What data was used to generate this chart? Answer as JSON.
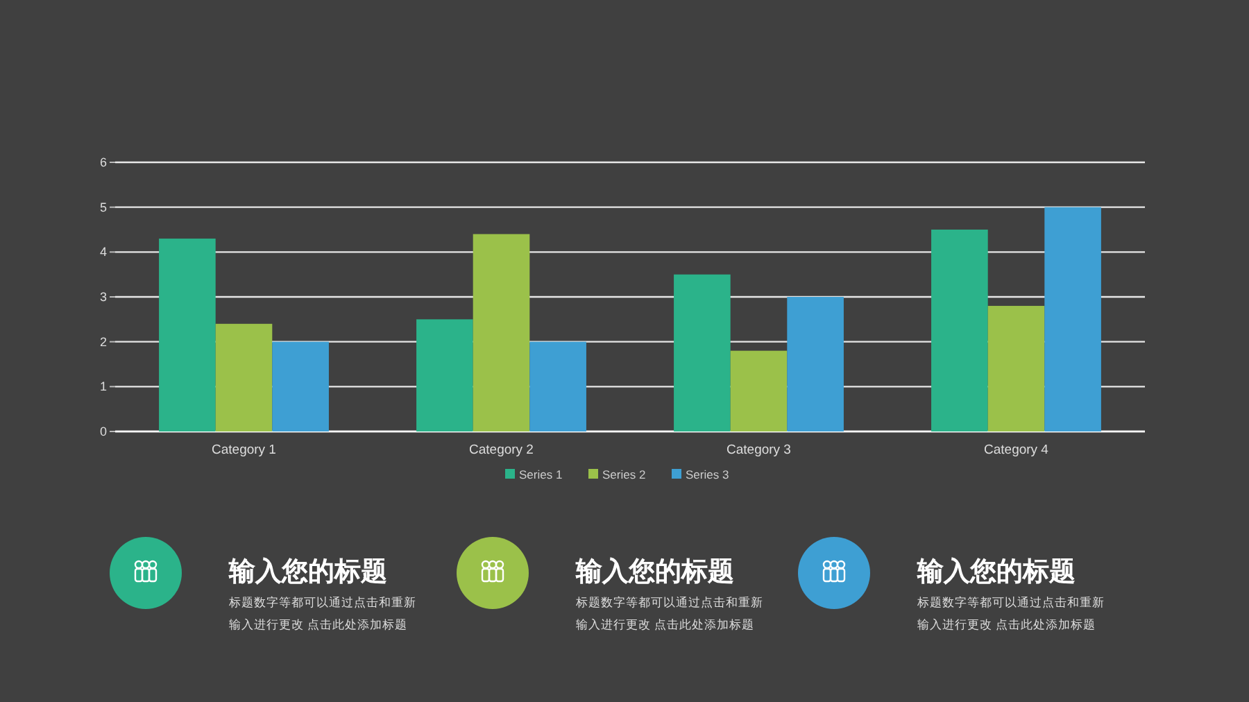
{
  "chart_data": {
    "type": "bar",
    "categories": [
      "Category 1",
      "Category 2",
      "Category 3",
      "Category 4"
    ],
    "series": [
      {
        "name": "Series 1",
        "color": "#2bb38a",
        "values": [
          4.3,
          2.5,
          3.5,
          4.5
        ]
      },
      {
        "name": "Series 2",
        "color": "#9bc14a",
        "values": [
          2.4,
          4.4,
          1.8,
          2.8
        ]
      },
      {
        "name": "Series 3",
        "color": "#3e9fd3",
        "values": [
          2,
          2,
          3,
          5
        ]
      }
    ],
    "ylim": [
      0,
      6
    ],
    "yticks": [
      0,
      1,
      2,
      3,
      4,
      5,
      6
    ],
    "grid": "y",
    "legend": "bottom",
    "annotations": [
      "输入您的标题",
      "标题数字等都可以通过点击和重新",
      "输入进行更改 点击此处添加标题",
      "输入您的标题",
      "标题数字等都可以通过点击和重新",
      "输入进行更改 点击此处添加标题",
      "输入您的标题",
      "标题数字等都可以通过点击和重新",
      "输入进行更改 点击此处添加标题"
    ]
  }
}
